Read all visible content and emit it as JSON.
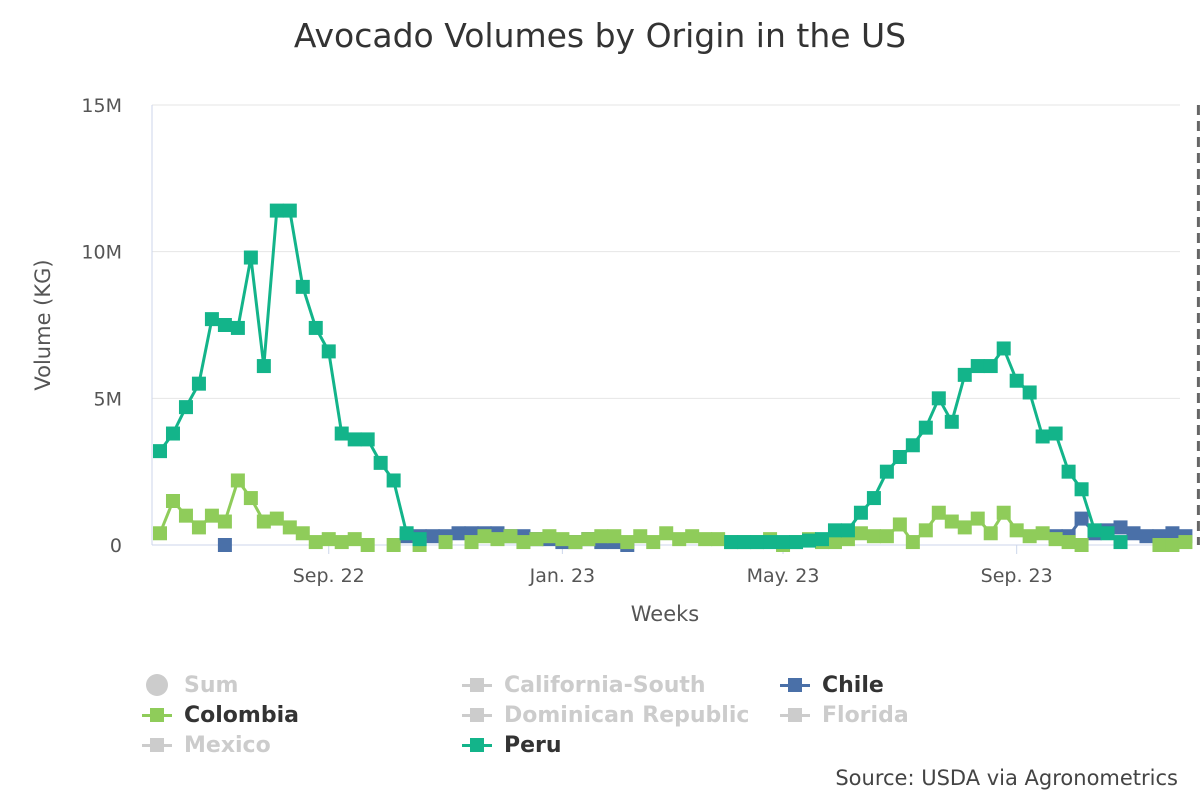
{
  "chart_data": {
    "type": "line",
    "title": "Avocado Volumes by Origin in the US",
    "xlabel": "Weeks",
    "ylabel": "Volume (KG)",
    "y_ticks": [
      "0",
      "5M",
      "10M",
      "15M"
    ],
    "y_tick_values": [
      0,
      5000000,
      10000000,
      15000000
    ],
    "ylim": [
      0,
      15000000
    ],
    "x_ticks": [
      "Sep. 22",
      "Jan. 23",
      "May. 23",
      "Sep. 23"
    ],
    "x_tick_weeks": [
      13,
      31,
      48,
      66
    ],
    "x_range_weeks": [
      0,
      80
    ],
    "grid": true,
    "current_marker_week": 80,
    "legend_position": "bottom",
    "series": [
      {
        "name": "Peru",
        "color": "#13b48a",
        "start_week": 0,
        "values": [
          3200000,
          3800000,
          4700000,
          5500000,
          7700000,
          7500000,
          7400000,
          9800000,
          6100000,
          11400000,
          11400000,
          8800000,
          7400000,
          6600000,
          3800000,
          3600000,
          3600000,
          2800000,
          2200000,
          400000,
          200000
        ]
      },
      {
        "name": "Peru",
        "color": "#13b48a",
        "start_week": 44,
        "values": [
          100000,
          100000,
          100000,
          100000,
          100000,
          100000,
          150000,
          200000,
          500000,
          500000,
          1100000,
          1600000,
          2500000,
          3000000,
          3400000,
          4000000,
          5000000,
          4200000,
          5800000,
          6100000,
          6100000,
          6700000,
          5600000,
          5200000,
          3700000,
          3800000,
          2500000,
          1900000,
          500000,
          400000,
          100000
        ]
      },
      {
        "name": "Colombia",
        "color": "#8fcc5a",
        "start_week": 0,
        "values": [
          400000,
          1500000,
          1000000,
          600000,
          1000000,
          800000,
          2200000,
          1600000,
          800000,
          900000,
          600000,
          400000,
          100000,
          200000,
          100000,
          200000,
          0,
          null,
          0,
          null,
          0,
          null,
          100000,
          null,
          100000,
          300000,
          200000,
          300000,
          100000,
          200000,
          300000,
          200000,
          100000,
          200000,
          300000,
          300000,
          100000,
          300000,
          100000,
          400000,
          200000,
          300000,
          200000,
          200000,
          100000,
          100000,
          100000,
          200000,
          0,
          100000,
          200000,
          100000,
          100000,
          200000,
          400000,
          300000,
          300000,
          700000,
          100000,
          500000,
          1100000,
          800000,
          600000,
          900000,
          400000,
          1100000,
          500000,
          300000,
          400000,
          200000,
          100000,
          0,
          null,
          null,
          null,
          null,
          null,
          0,
          0,
          100000
        ]
      },
      {
        "name": "Chile",
        "color": "#4a70a8",
        "start_week": 5,
        "values": [
          0
        ]
      },
      {
        "name": "Chile",
        "color": "#4a70a8",
        "start_week": 19,
        "values": [
          300000,
          300000,
          300000,
          300000,
          400000,
          400000,
          400000,
          400000,
          300000,
          300000,
          200000,
          200000,
          100000,
          100000,
          200000,
          100000,
          100000,
          0
        ]
      },
      {
        "name": "Chile",
        "color": "#4a70a8",
        "start_week": 69,
        "values": [
          300000,
          300000,
          900000,
          400000,
          500000,
          600000,
          400000,
          300000,
          300000,
          400000,
          300000
        ]
      }
    ]
  },
  "legend": [
    {
      "label": "Sum",
      "color": "#cccccc",
      "visible": false,
      "symbol": "circle"
    },
    {
      "label": "California-South",
      "color": "#cccccc",
      "visible": false,
      "symbol": "square"
    },
    {
      "label": "Chile",
      "color": "#4a70a8",
      "visible": true,
      "symbol": "square"
    },
    {
      "label": "Colombia",
      "color": "#8fcc5a",
      "visible": true,
      "symbol": "square"
    },
    {
      "label": "Dominican Republic",
      "color": "#cccccc",
      "visible": false,
      "symbol": "square"
    },
    {
      "label": "Florida",
      "color": "#cccccc",
      "visible": false,
      "symbol": "square"
    },
    {
      "label": "Mexico",
      "color": "#cccccc",
      "visible": false,
      "symbol": "square"
    },
    {
      "label": "Peru",
      "color": "#13b48a",
      "visible": true,
      "symbol": "square"
    }
  ],
  "source": "Source: USDA via Agronometrics"
}
